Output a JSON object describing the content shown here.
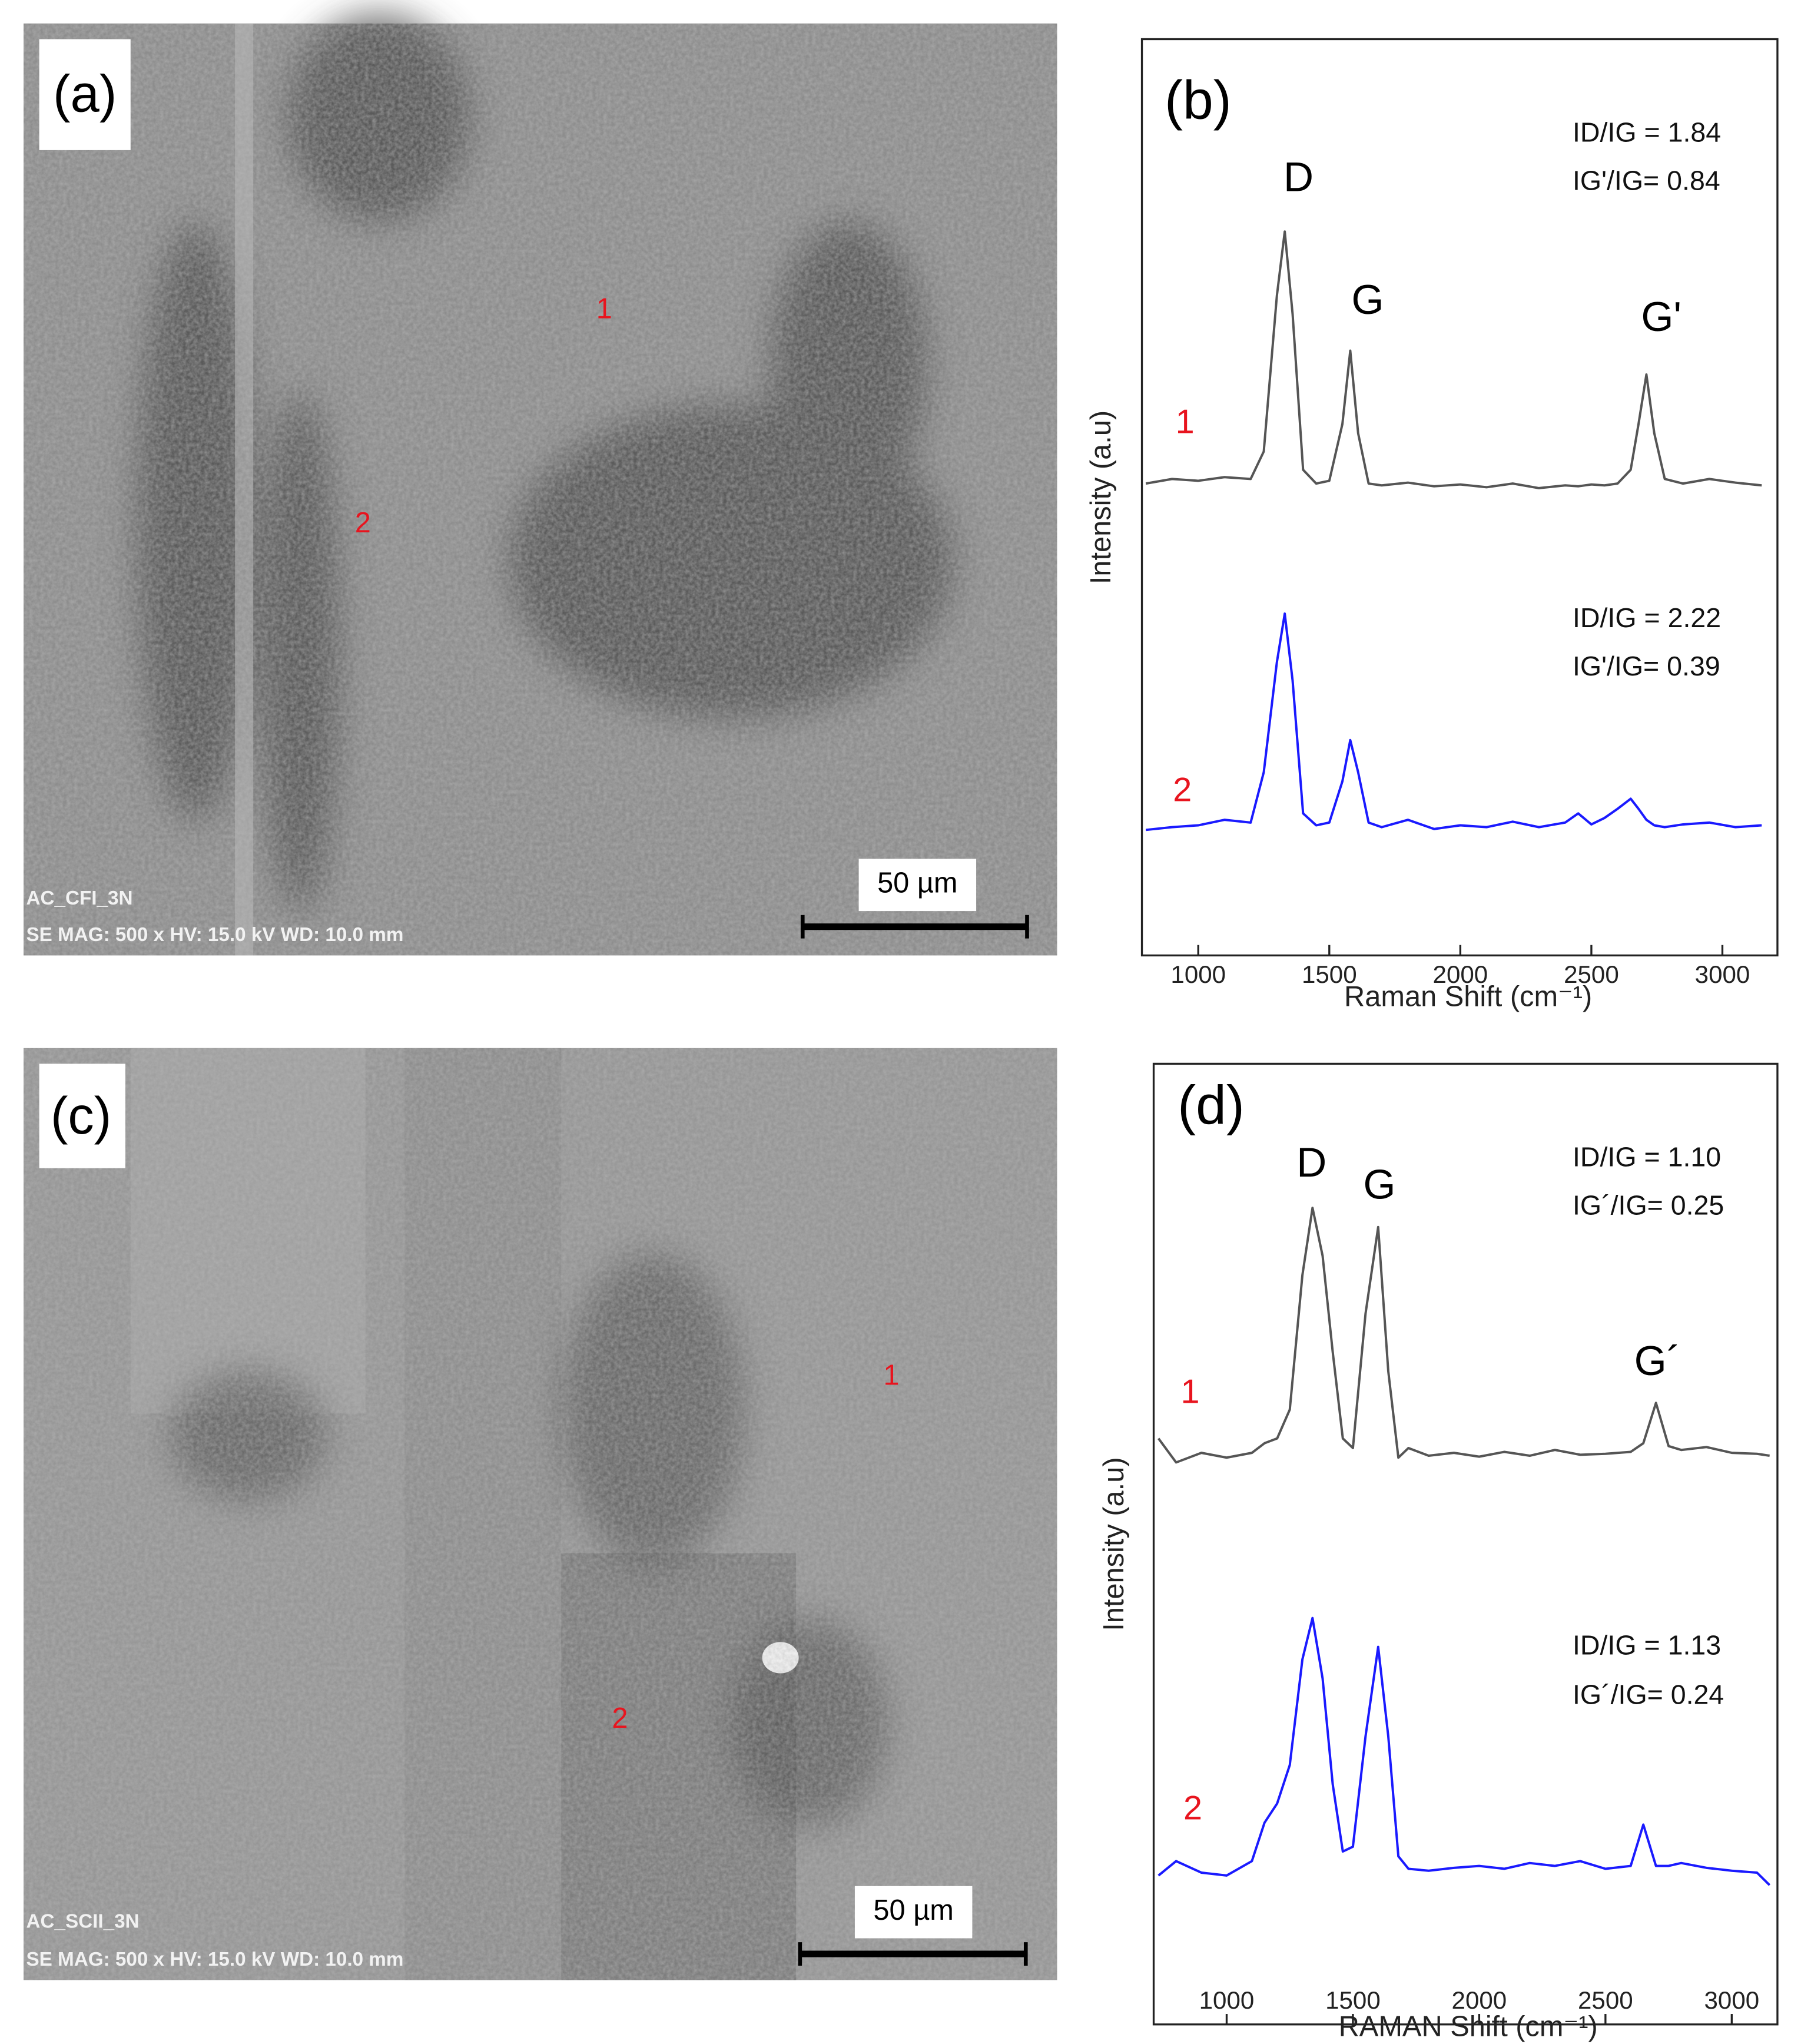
{
  "sem_images": [
    {
      "panel_label": "(a)",
      "point_labels": [
        "1",
        "2"
      ],
      "scale_bar": "50 µm",
      "info_lines": [
        "AC_CFI_3N",
        "SE  MAG: 500 x  HV: 15.0 kV  WD: 10.0 mm"
      ]
    },
    {
      "panel_label": "(c)",
      "point_labels": [
        "1",
        "2"
      ],
      "scale_bar": "50 µm",
      "info_lines": [
        "AC_SCII_3N",
        "SE  MAG: 500 x  HV: 15.0 kV  WD: 10.0 mm"
      ]
    }
  ],
  "chart_data": [
    {
      "type": "line",
      "panel_label": "(b)",
      "x_label": "Raman Shift (cm⁻¹)",
      "y_label": "Intensity (a.u)",
      "peak_labels": [
        "D",
        "G",
        "G'"
      ],
      "ratio_labels": [
        [
          "ID/IG = 1.84",
          "IG'/IG= 0.84"
        ],
        [
          "ID/IG = 2.22",
          "IG'/IG= 0.39"
        ]
      ],
      "x": [
        800,
        900,
        1000,
        1100,
        1200,
        1250,
        1300,
        1330,
        1360,
        1400,
        1450,
        1500,
        1550,
        1580,
        1610,
        1650,
        1700,
        1800,
        1900,
        2000,
        2100,
        2200,
        2300,
        2400,
        2450,
        2500,
        2550,
        2600,
        2650,
        2680,
        2710,
        2740,
        2780,
        2850,
        2950,
        3050,
        3150
      ],
      "series": [
        {
          "name": "1",
          "color": "#555555",
          "values": [
            51.5,
            52,
            51.8,
            52.2,
            52,
            55,
            72,
            79,
            70,
            53,
            51.5,
            51.8,
            58,
            66,
            57,
            51.5,
            51.3,
            51.6,
            51.2,
            51.4,
            51.1,
            51.5,
            51,
            51.3,
            51.2,
            51.4,
            51.3,
            51.5,
            53,
            58,
            63.4,
            57,
            52,
            51.5,
            52,
            51.6,
            51.3
          ]
        },
        {
          "name": "2",
          "color": "#1a1aff",
          "values": [
            13.7,
            14,
            14.2,
            14.8,
            14.5,
            20,
            32,
            37.3,
            30,
            15.5,
            14.2,
            14.5,
            19,
            23.5,
            20,
            14.5,
            14,
            14.8,
            13.8,
            14.2,
            14,
            14.6,
            14,
            14.5,
            15.5,
            14.3,
            15,
            16,
            17.1,
            16,
            14.8,
            14.2,
            14,
            14.3,
            14.5,
            14,
            14.2
          ]
        }
      ],
      "xlim": [
        785,
        3210
      ],
      "xticks": [
        1000,
        1500,
        2000,
        2500,
        3000
      ],
      "ylim": [
        0,
        100
      ]
    },
    {
      "type": "line",
      "panel_label": "(d)",
      "x_label": "RAMAN Shift (cm⁻¹)",
      "y_label": "Intensity (a.u)",
      "peak_labels": [
        "D",
        "G",
        "G´"
      ],
      "ratio_labels": [
        [
          "ID/IG = 1.10",
          "IG´/IG=  0.25"
        ],
        [
          "ID/IG = 1.13",
          "IG´/IG= 0.24"
        ]
      ],
      "x": [
        730,
        800,
        900,
        1000,
        1100,
        1150,
        1200,
        1250,
        1300,
        1340,
        1380,
        1420,
        1460,
        1500,
        1550,
        1600,
        1640,
        1680,
        1720,
        1800,
        1900,
        2000,
        2100,
        2200,
        2300,
        2400,
        2500,
        2600,
        2650,
        2700,
        2750,
        2800,
        2900,
        3000,
        3100,
        3150
      ],
      "series": [
        {
          "name": "1",
          "color": "#555555",
          "values": [
            61,
            58.5,
            59.5,
            59,
            59.5,
            60.5,
            61,
            64,
            78,
            85,
            80,
            70,
            61,
            60,
            74,
            83,
            68,
            59,
            60,
            59.2,
            59.5,
            59.1,
            59.6,
            59.2,
            59.8,
            59.3,
            59.4,
            59.6,
            60.5,
            64.7,
            60.2,
            59.8,
            60.1,
            59.5,
            59.4,
            59.2
          ]
        },
        {
          "name": "2",
          "color": "#1a1aff",
          "values": [
            15.5,
            17,
            15.8,
            15.5,
            17,
            21,
            23,
            27,
            38,
            42.3,
            36,
            25,
            18,
            18.5,
            30,
            39.3,
            30,
            17.5,
            16.2,
            16,
            16.3,
            16.5,
            16.2,
            16.8,
            16.5,
            17,
            16.2,
            16.5,
            20.8,
            16.5,
            16.5,
            16.8,
            16.3,
            16,
            15.8,
            14.5
          ]
        }
      ],
      "xlim": [
        711,
        3181
      ],
      "xticks": [
        1000,
        1500,
        2000,
        2500,
        3000
      ],
      "ylim": [
        0,
        100
      ]
    }
  ]
}
